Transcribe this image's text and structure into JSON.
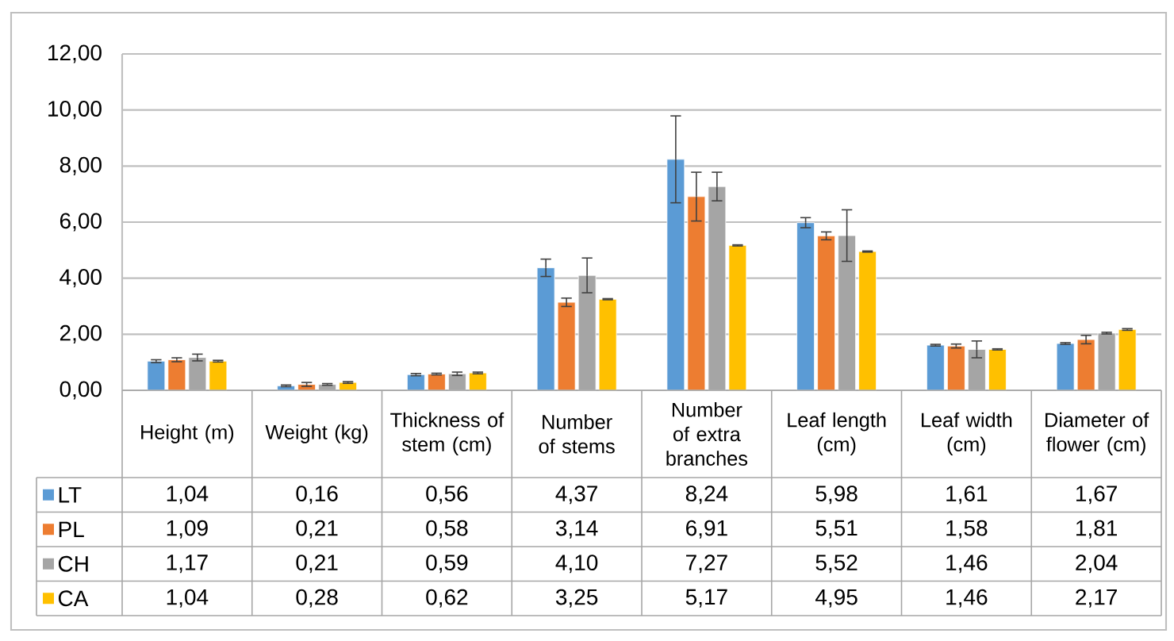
{
  "chart_data": {
    "type": "bar",
    "categories": [
      "Height (m)",
      "Weight (kg)",
      "Thickness of stem (cm)",
      "Number of stems",
      "Number of extra branches",
      "Leaf length (cm)",
      "Leaf width (cm)",
      "Diameter of flower (cm)"
    ],
    "series": [
      {
        "name": "LT",
        "color": "#5b9bd5",
        "values": [
          1.04,
          0.16,
          0.56,
          4.37,
          8.24,
          5.98,
          1.61,
          1.67
        ],
        "errors": [
          0.05,
          0.03,
          0.04,
          0.31,
          1.55,
          0.18,
          0.03,
          0.03
        ],
        "value_labels": [
          "1,04",
          "0,16",
          "0,56",
          "4,37",
          "8,24",
          "5,98",
          "1,61",
          "1,67"
        ]
      },
      {
        "name": "PL",
        "color": "#ed7d31",
        "values": [
          1.09,
          0.21,
          0.58,
          3.14,
          6.91,
          5.51,
          1.58,
          1.81
        ],
        "errors": [
          0.07,
          0.07,
          0.03,
          0.15,
          0.87,
          0.14,
          0.07,
          0.15
        ],
        "value_labels": [
          "1,09",
          "0,21",
          "0,58",
          "3,14",
          "6,91",
          "5,51",
          "1,58",
          "1,81"
        ]
      },
      {
        "name": "CH",
        "color": "#a5a5a5",
        "values": [
          1.17,
          0.21,
          0.59,
          4.1,
          7.27,
          5.52,
          1.46,
          2.04
        ],
        "errors": [
          0.12,
          0.03,
          0.06,
          0.62,
          0.51,
          0.92,
          0.3,
          0.03
        ],
        "value_labels": [
          "1,17",
          "0,21",
          "0,59",
          "4,10",
          "7,27",
          "5,52",
          "1,46",
          "2,04"
        ]
      },
      {
        "name": "CA",
        "color": "#ffc000",
        "values": [
          1.04,
          0.28,
          0.62,
          3.25,
          5.17,
          4.95,
          1.46,
          2.17
        ],
        "errors": [
          0.03,
          0.03,
          0.03,
          0.02,
          0.02,
          0.02,
          0.02,
          0.03
        ],
        "value_labels": [
          "1,04",
          "0,28",
          "0,62",
          "3,25",
          "5,17",
          "4,95",
          "1,46",
          "2,17"
        ]
      }
    ],
    "ylim": [
      0,
      12
    ],
    "yticks": [
      {
        "value": 0,
        "label": "0,00"
      },
      {
        "value": 2,
        "label": "2,00"
      },
      {
        "value": 4,
        "label": "4,00"
      },
      {
        "value": 6,
        "label": "6,00"
      },
      {
        "value": 8,
        "label": "8,00"
      },
      {
        "value": 10,
        "label": "10,00"
      },
      {
        "value": 12,
        "label": "12,00"
      }
    ],
    "grid": "y",
    "legend": "bottom left"
  }
}
